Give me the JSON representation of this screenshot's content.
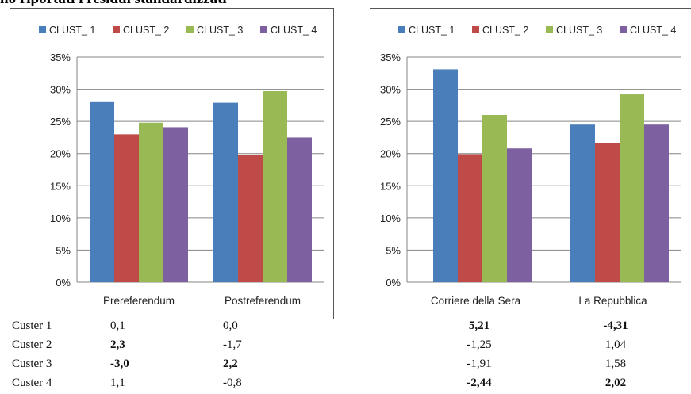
{
  "caption": "no riportati i residui standardizzati",
  "legend_colors": {
    "CLUST_ 1": "#4a7ebb",
    "CLUST_ 2": "#be4b48",
    "CLUST_ 3": "#98b954",
    "CLUST_ 4": "#7d60a0"
  },
  "chart_data": [
    {
      "type": "bar",
      "categories": [
        "Prereferendum",
        "Postreferendum"
      ],
      "series": [
        {
          "name": "CLUST_ 1",
          "values": [
            28.0,
            27.9
          ]
        },
        {
          "name": "CLUST_ 2",
          "values": [
            23.0,
            19.8
          ]
        },
        {
          "name": "CLUST_ 3",
          "values": [
            24.8,
            29.7
          ]
        },
        {
          "name": "CLUST_ 4",
          "values": [
            24.1,
            22.5
          ]
        }
      ],
      "ylim": [
        0,
        35
      ],
      "yticks": [
        "0%",
        "5%",
        "10%",
        "15%",
        "20%",
        "25%",
        "30%",
        "35%"
      ],
      "grid": true,
      "legend": "top"
    },
    {
      "type": "bar",
      "categories": [
        "Corriere della Sera",
        "La Repubblica"
      ],
      "series": [
        {
          "name": "CLUST_ 1",
          "values": [
            33.1,
            24.5
          ]
        },
        {
          "name": "CLUST_ 2",
          "values": [
            19.9,
            21.6
          ]
        },
        {
          "name": "CLUST_ 3",
          "values": [
            26.0,
            29.2
          ]
        },
        {
          "name": "CLUST_ 4",
          "values": [
            20.8,
            24.5
          ]
        }
      ],
      "ylim": [
        0,
        35
      ],
      "yticks": [
        "0%",
        "5%",
        "10%",
        "15%",
        "20%",
        "25%",
        "30%",
        "35%"
      ],
      "grid": true,
      "legend": "top"
    }
  ],
  "residuals": {
    "rows": [
      {
        "label": "Custer 1",
        "left": [
          "0,1",
          "0,0"
        ],
        "left_bold": [
          false,
          false
        ],
        "right": [
          "5,21",
          "-4,31"
        ],
        "right_bold": [
          true,
          true
        ]
      },
      {
        "label": "Custer 2",
        "left": [
          "2,3",
          "-1,7"
        ],
        "left_bold": [
          true,
          false
        ],
        "right": [
          "-1,25",
          "1,04"
        ],
        "right_bold": [
          false,
          false
        ]
      },
      {
        "label": "Custer 3",
        "left": [
          "-3,0",
          "2,2"
        ],
        "left_bold": [
          true,
          true
        ],
        "right": [
          "-1,91",
          "1,58"
        ],
        "right_bold": [
          false,
          false
        ]
      },
      {
        "label": "Custer 4",
        "left": [
          "1,1",
          "-0,8"
        ],
        "left_bold": [
          false,
          false
        ],
        "right": [
          "-2,44",
          "2,02"
        ],
        "right_bold": [
          true,
          true
        ]
      }
    ]
  }
}
